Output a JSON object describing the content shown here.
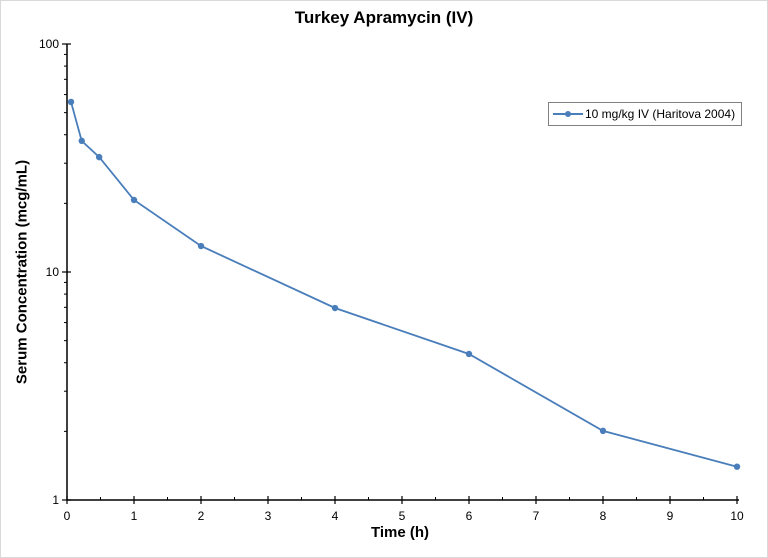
{
  "chart_data": {
    "type": "line",
    "title": "Turkey Apramycin (IV)",
    "xlabel": "Time (h)",
    "ylabel": "Serum Concentration (mcg/mL)",
    "yscale": "log",
    "xlim": [
      0,
      10
    ],
    "ylim": [
      1,
      100
    ],
    "x_ticks": [
      0,
      1,
      2,
      3,
      4,
      5,
      6,
      7,
      8,
      9,
      10
    ],
    "y_ticks": [
      1,
      10,
      100
    ],
    "grid": false,
    "legend_position": "upper right",
    "series": [
      {
        "name": "10 mg/kg IV (Haritova 2004)",
        "color": "#4a7ebb",
        "marker": "circle",
        "x": [
          0.06,
          0.22,
          0.48,
          1,
          2,
          4,
          6,
          8,
          10
        ],
        "values": [
          55.7,
          37.6,
          31.9,
          20.7,
          13.0,
          6.95,
          4.37,
          2.01,
          1.4
        ]
      }
    ]
  },
  "legend": {
    "label": "10 mg/kg IV (Haritova 2004)"
  }
}
